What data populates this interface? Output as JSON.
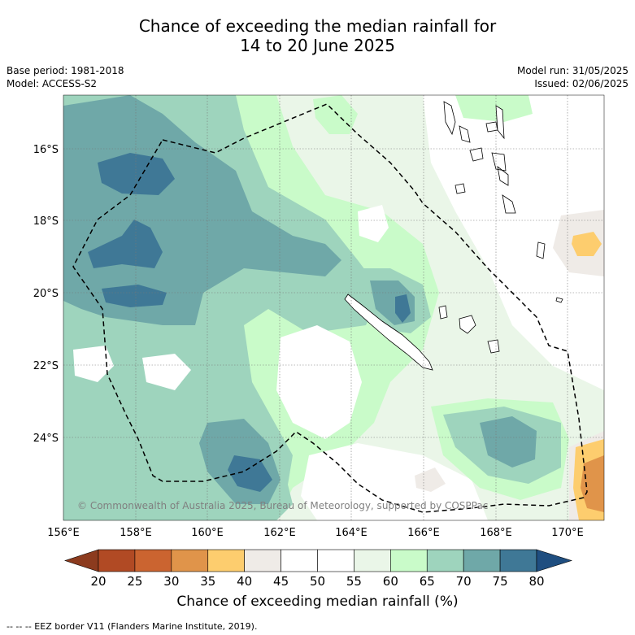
{
  "title_line1": "Chance of exceeding the median rainfall for",
  "title_line2": "14 to 20 June 2025",
  "meta": {
    "base_period": "Base period: 1981-2018",
    "model": "Model: ACCESS-S2",
    "model_run": "Model run: 31/05/2025",
    "issued": "Issued: 02/06/2025"
  },
  "map": {
    "lat_labels": [
      "16°S",
      "18°S",
      "20°S",
      "22°S",
      "24°S"
    ],
    "lon_labels": [
      "156°E",
      "158°E",
      "160°E",
      "162°E",
      "164°E",
      "166°E",
      "168°E",
      "170°E"
    ],
    "copyright": "© Commonwealth of Australia 2025, Bureau of Meteorology, supported by COSPPac"
  },
  "colorbar": {
    "ticks": [
      "20",
      "25",
      "30",
      "35",
      "40",
      "45",
      "50",
      "55",
      "60",
      "65",
      "70",
      "75",
      "80"
    ],
    "colors": [
      "#8c3b1e",
      "#b14a24",
      "#cb6430",
      "#e0944a",
      "#fdcd6e",
      "#efebe7",
      "#ffffff",
      "#ffffff",
      "#eaf6e8",
      "#c9fbc9",
      "#9ed4bd",
      "#6fa8a8",
      "#3f7896",
      "#1f4e80"
    ],
    "title": "Chance of exceeding median rainfall (%)"
  },
  "footer": "-- -- -- EEZ border V11 (Flanders Marine Institute, 2019)."
}
